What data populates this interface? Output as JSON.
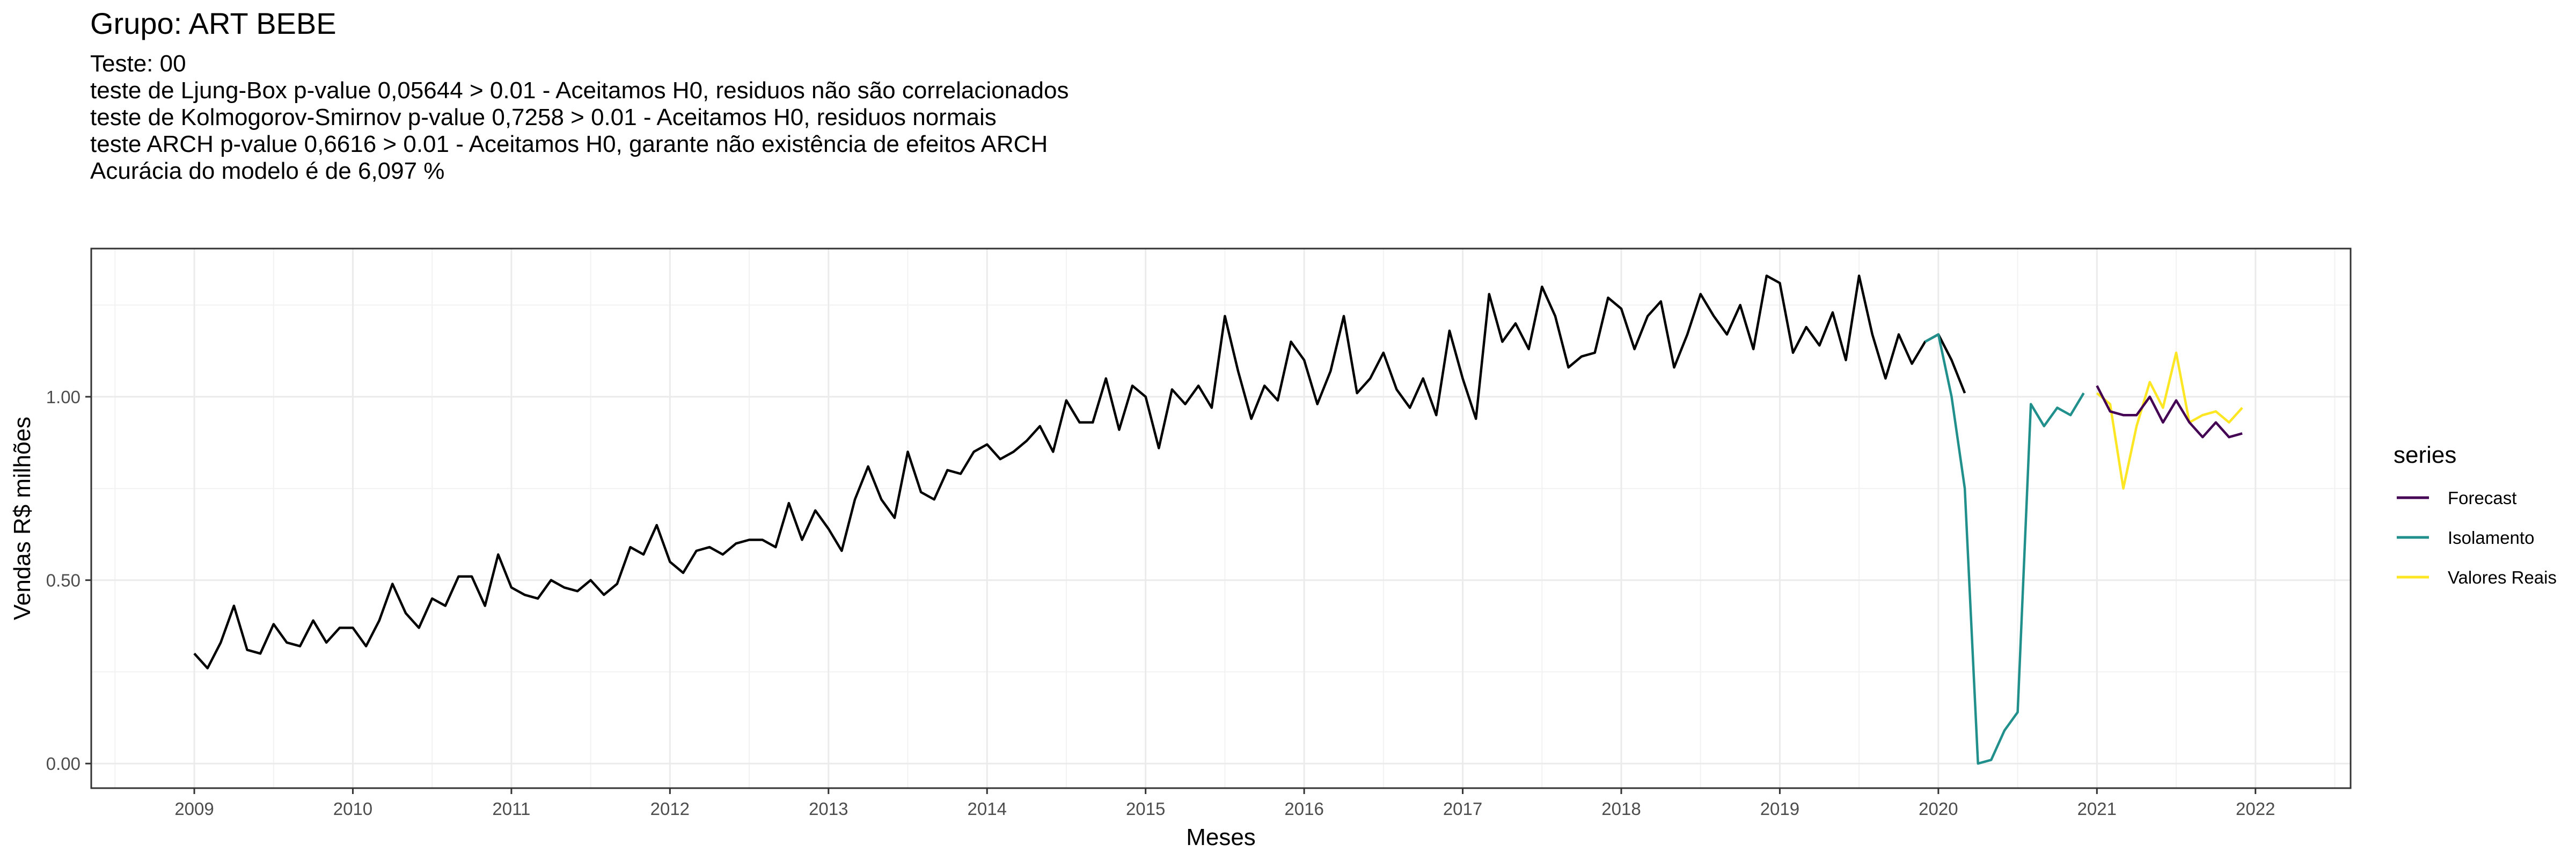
{
  "chart_data": {
    "type": "line",
    "title": "Grupo: ART BEBE",
    "subtitle": [
      "Teste: 00",
      "teste de Ljung-Box p-value 0,05644 > 0.01 - Aceitamos H0, residuos não são correlacionados",
      "teste de Kolmogorov-Smirnov p-value 0,7258 > 0.01 - Aceitamos H0, residuos normais",
      "teste ARCH p-value 0,6616 > 0.01 - Aceitamos H0, garante não existência de efeitos ARCH",
      "Acurácia do modelo é de 6,097 %"
    ],
    "xlabel": "Meses",
    "ylabel": "Vendas R$ milhões",
    "xlim": [
      2008.35,
      2022.6
    ],
    "ylim": [
      -0.067,
      1.404
    ],
    "x_ticks": [
      "2009",
      "2010",
      "2011",
      "2012",
      "2013",
      "2014",
      "2015",
      "2016",
      "2017",
      "2018",
      "2019",
      "2020",
      "2021",
      "2022"
    ],
    "y_ticks": [
      "0.00",
      "0.50",
      "1.00"
    ],
    "grid": true,
    "legend": {
      "title": "series",
      "placement": "right"
    },
    "series": [
      {
        "color": "#000000",
        "start": 2009.0,
        "values": [
          0.3,
          0.26,
          0.33,
          0.43,
          0.31,
          0.3,
          0.38,
          0.33,
          0.32,
          0.39,
          0.33,
          0.37,
          0.37,
          0.32,
          0.39,
          0.49,
          0.41,
          0.37,
          0.45,
          0.43,
          0.51,
          0.51,
          0.43,
          0.57,
          0.48,
          0.46,
          0.45,
          0.5,
          0.48,
          0.47,
          0.5,
          0.46,
          0.49,
          0.59,
          0.57,
          0.65,
          0.55,
          0.52,
          0.58,
          0.59,
          0.57,
          0.6,
          0.61,
          0.61,
          0.59,
          0.71,
          0.61,
          0.69,
          0.64,
          0.58,
          0.72,
          0.81,
          0.72,
          0.67,
          0.85,
          0.74,
          0.72,
          0.8,
          0.79,
          0.85,
          0.87,
          0.83,
          0.85,
          0.88,
          0.92,
          0.85,
          0.99,
          0.93,
          0.93,
          1.05,
          0.91,
          1.03,
          1.0,
          0.86,
          1.02,
          0.98,
          1.03,
          0.97,
          1.22,
          1.07,
          0.94,
          1.03,
          0.99,
          1.15,
          1.1,
          0.98,
          1.07,
          1.22,
          1.01,
          1.05,
          1.12,
          1.02,
          0.97,
          1.05,
          0.95,
          1.18,
          1.05,
          0.94,
          1.28,
          1.15,
          1.2,
          1.13,
          1.3,
          1.22,
          1.08,
          1.11,
          1.12,
          1.27,
          1.24,
          1.13,
          1.22,
          1.26,
          1.08,
          1.17,
          1.28,
          1.22,
          1.17,
          1.25,
          1.13,
          1.33,
          1.31,
          1.12,
          1.19,
          1.14,
          1.23,
          1.1,
          1.33,
          1.17,
          1.05,
          1.17,
          1.09,
          1.15,
          1.17,
          1.1,
          1.01
        ]
      },
      {
        "name": "Isolamento",
        "color": "#21908C",
        "start": 2019.9167,
        "values": [
          1.15,
          1.17,
          1.0,
          0.75,
          0.0,
          0.01,
          0.09,
          0.14,
          0.98,
          0.92,
          0.97,
          0.95,
          1.01
        ]
      },
      {
        "name": "Valores Reais",
        "color": "#FDE725",
        "start": 2021.0,
        "values": [
          1.01,
          0.98,
          0.75,
          0.92,
          1.04,
          0.97,
          1.12,
          0.93,
          0.95,
          0.96,
          0.93,
          0.97
        ]
      },
      {
        "name": "Forecast",
        "color": "#440154",
        "start": 2021.0,
        "values": [
          1.03,
          0.96,
          0.95,
          0.95,
          1.0,
          0.93,
          0.99,
          0.93,
          0.89,
          0.93,
          0.89,
          0.9
        ]
      }
    ],
    "legend_order": [
      "Forecast",
      "Isolamento",
      "Valores Reais"
    ]
  }
}
